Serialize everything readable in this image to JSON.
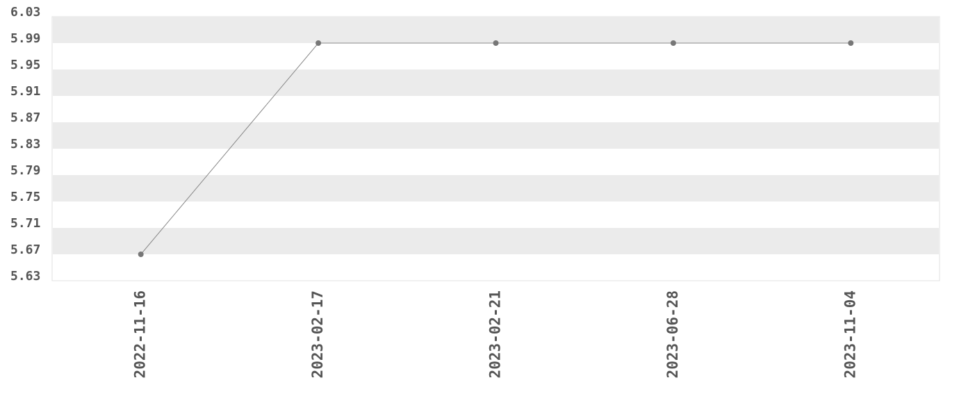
{
  "chart_data": {
    "type": "line",
    "categories": [
      "2022-11-16",
      "2023-02-17",
      "2023-02-21",
      "2023-06-28",
      "2023-11-04"
    ],
    "series": [
      {
        "color": "#777777",
        "values": [
          5.67,
          5.99,
          5.99,
          5.99,
          5.99
        ]
      }
    ],
    "ylim": [
      5.63,
      6.03
    ],
    "yticks": [
      5.63,
      5.67,
      5.71,
      5.75,
      5.79,
      5.83,
      5.87,
      5.91,
      5.95,
      5.99,
      6.03
    ],
    "grid": true
  }
}
